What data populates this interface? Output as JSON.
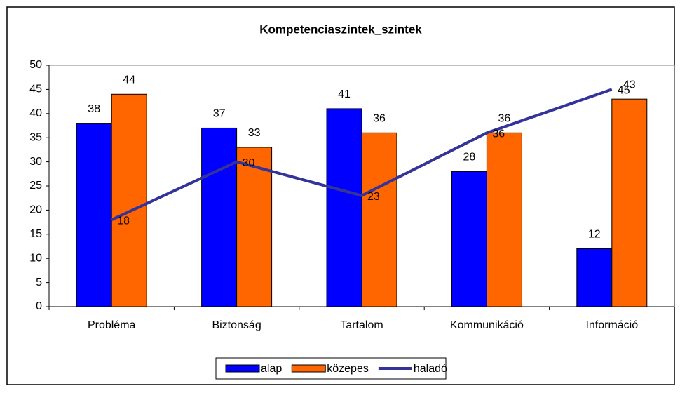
{
  "chart_data": {
    "type": "bar",
    "title": "Kompetenciaszintek_szintek",
    "categories": [
      "Probléma",
      "Biztonság",
      "Tartalom",
      "Kommunikáció",
      "Információ"
    ],
    "series": [
      {
        "name": "alap",
        "color": "#0000ff",
        "values": [
          38,
          37,
          41,
          28,
          12
        ]
      },
      {
        "name": "közepes",
        "color": "#ff6600",
        "values": [
          44,
          33,
          36,
          36,
          43
        ]
      },
      {
        "name": "haladó",
        "color": "#333399",
        "type": "line",
        "values": [
          18,
          30,
          23,
          36,
          45
        ]
      }
    ],
    "ylim": [
      0,
      50
    ],
    "yticks": [
      0,
      5,
      10,
      15,
      20,
      25,
      30,
      35,
      40,
      45,
      50
    ],
    "grid": false,
    "legend": "bottom"
  }
}
